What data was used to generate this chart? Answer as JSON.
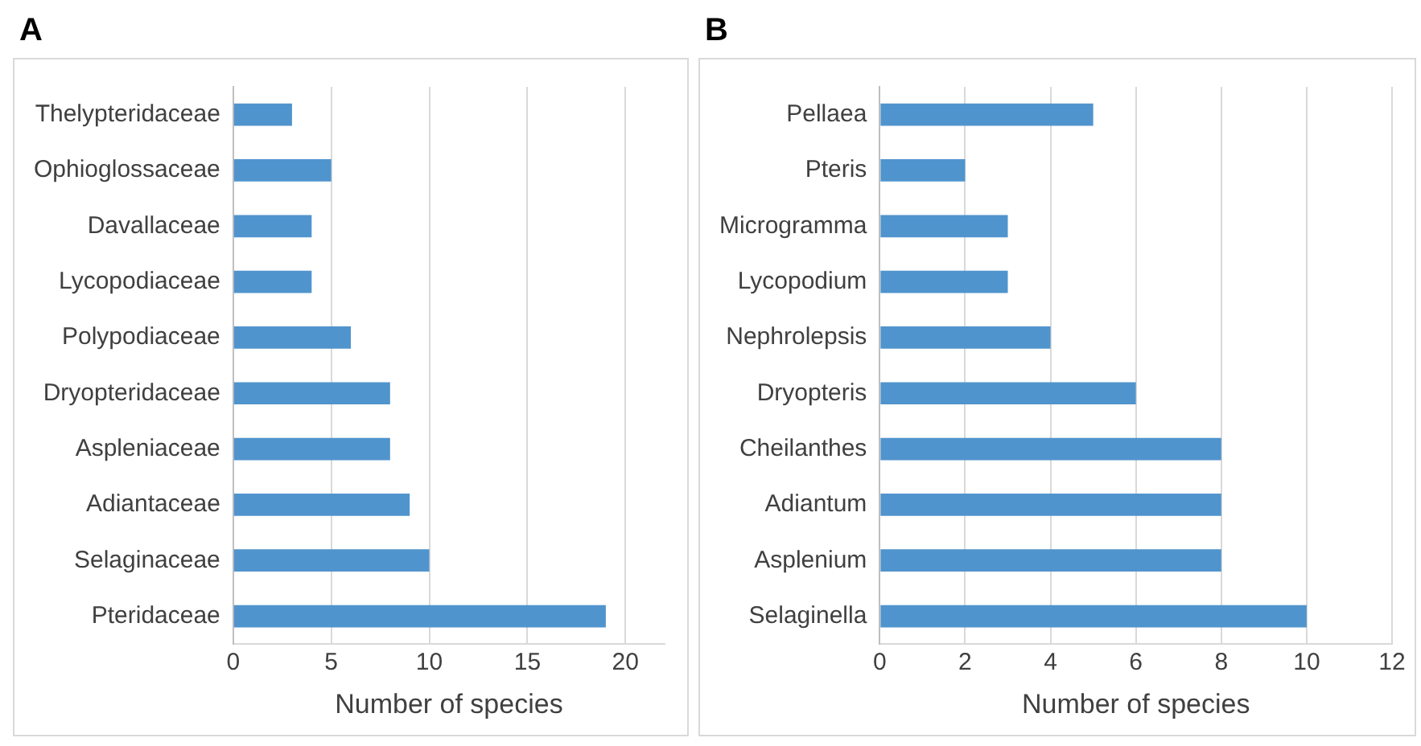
{
  "chart_data": [
    {
      "type": "bar",
      "title": "A",
      "orientation": "horizontal",
      "categories": [
        "Thelypteridaceae",
        "Ophioglossaceae",
        "Davallaceae",
        "Lycopodiaceae",
        "Polypodiaceae",
        "Dryopteridaceae",
        "Aspleniaceae",
        "Adiantaceae",
        "Selaginaceae",
        "Pteridaceae"
      ],
      "values": [
        3,
        5,
        4,
        4,
        6,
        8,
        8,
        9,
        10,
        19
      ],
      "color": "#5094cd",
      "xlabel": "Number of species",
      "xlim": [
        0,
        22
      ],
      "xticks": [
        0,
        5,
        10,
        15,
        20
      ],
      "grid": "x"
    },
    {
      "type": "bar",
      "title": "B",
      "orientation": "horizontal",
      "categories": [
        "Pellaea",
        "Pteris",
        "Microgramma",
        "Lycopodium",
        "Nephrolepsis",
        "Dryopteris",
        "Cheilanthes",
        "Adiantum",
        "Asplenium",
        "Selaginella"
      ],
      "values": [
        5,
        2,
        3,
        3,
        4,
        6,
        8,
        8,
        8,
        10
      ],
      "color": "#5094cd",
      "xlabel": "Number of species",
      "xlim": [
        0,
        12
      ],
      "xticks": [
        0,
        2,
        4,
        6,
        8,
        10,
        12
      ],
      "grid": "x"
    }
  ]
}
